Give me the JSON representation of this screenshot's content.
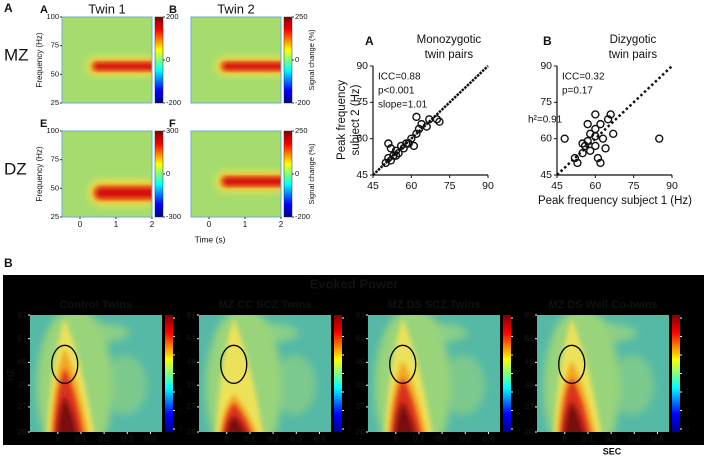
{
  "figure_letters": [
    "A",
    "B"
  ],
  "spectrograms": {
    "column_titles": [
      "Twin 1",
      "Twin 2"
    ],
    "row_labels": [
      "MZ",
      "DZ"
    ],
    "y_label": "Frequency (Hz)",
    "x_label": "Time (s)",
    "colorbar_label": "Signal change (%)",
    "ylim": [
      25,
      100
    ],
    "yticks": [
      100,
      75,
      50,
      25
    ],
    "xlim": [
      -0.5,
      2
    ],
    "xticks": [
      0,
      1,
      2
    ],
    "panels": [
      {
        "letter": "A",
        "colorbar_ticks": [
          200,
          0,
          -200
        ]
      },
      {
        "letter": "B",
        "colorbar_ticks": [
          250,
          0,
          -200
        ]
      },
      {
        "letter": "E",
        "colorbar_ticks": [
          300,
          0,
          -300
        ]
      },
      {
        "letter": "F",
        "colorbar_ticks": [
          250,
          0,
          -200
        ]
      }
    ]
  },
  "scatter": {
    "x_label": "Peak frequency subject 1 (Hz)",
    "y_label": [
      "Peak frequency",
      "subject 2 (Hz)"
    ],
    "xlim": [
      45,
      90
    ],
    "ylim": [
      45,
      90
    ],
    "xticks": [
      45,
      60,
      75,
      90
    ],
    "yticks": [
      45,
      60,
      75,
      90
    ],
    "panels": [
      {
        "letter": "A",
        "title": [
          "Monozygotic",
          "twin pairs"
        ],
        "stats": [
          "ICC=0.88",
          "p<0.001",
          "slope=1.01"
        ],
        "x": [
          50,
          51,
          52,
          53,
          52,
          54,
          55,
          54,
          56,
          57,
          58,
          59,
          60,
          61,
          62,
          63,
          64,
          66,
          67,
          70,
          71,
          62,
          51
        ],
        "y": [
          50,
          52,
          51,
          53,
          56,
          55,
          54,
          53,
          57,
          56,
          58,
          58,
          60,
          57,
          62,
          64,
          66,
          65,
          68,
          68,
          67,
          69,
          58
        ]
      },
      {
        "letter": "B",
        "title": [
          "Dizygotic",
          "twin pairs"
        ],
        "stats": [
          "ICC=0.32",
          "p=0.17"
        ],
        "annotation": "h²=0.91",
        "x": [
          52,
          53,
          55,
          56,
          57,
          58,
          58,
          60,
          60,
          60,
          61,
          62,
          62,
          63,
          64,
          65,
          67,
          57,
          55,
          48,
          85,
          60,
          66
        ],
        "y": [
          52,
          50,
          54,
          57,
          59,
          62,
          55,
          57,
          61,
          64,
          52,
          50,
          66,
          60,
          56,
          68,
          62,
          66,
          58,
          60,
          60,
          70,
          70
        ]
      }
    ]
  },
  "evoked": {
    "title": "Evoked Power",
    "y_label": "HZ",
    "x_label": "SEC",
    "log_y": true,
    "ylim": [
      20,
      81
    ],
    "yticks": [
      81,
      61,
      46,
      35,
      27,
      20
    ],
    "xlim": [
      -0.12,
      0.45
    ],
    "xticks": [
      0,
      0.1,
      0.2,
      0.3,
      0.4
    ],
    "colorbar_ticks": [
      3,
      2,
      1,
      0,
      -1,
      -2,
      -3
    ],
    "panel_titles": [
      "Control Twins",
      "MZ CC SCZ Twins",
      "MZ DS SCZ Twins",
      "MZ DS Well Co-twins"
    ]
  }
}
